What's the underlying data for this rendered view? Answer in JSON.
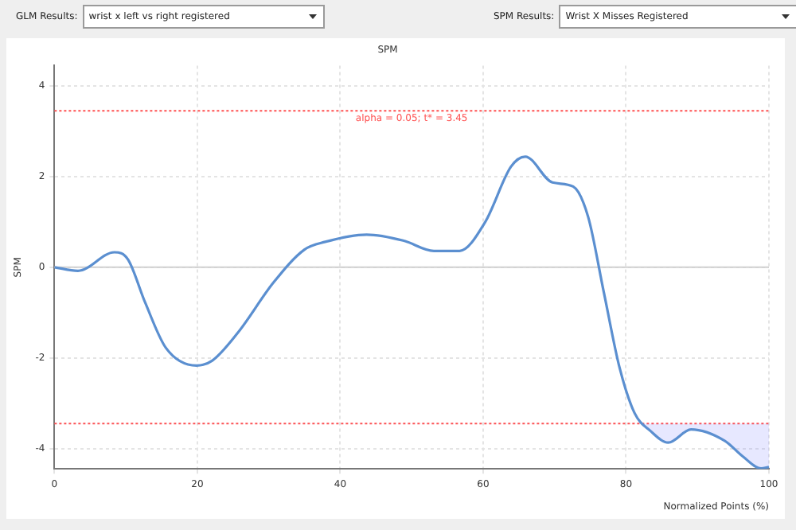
{
  "chart_data": {
    "type": "line",
    "title": "SPM",
    "xlabel": "Normalized Points (%)",
    "ylabel": "SPM",
    "annotations": [
      "GLM Results:",
      "wrist x left vs right registered",
      "SPM Results:",
      "Wrist X Misses Registered"
    ],
    "x": [
      0,
      3.3,
      8.4,
      10.3,
      12.7,
      15.6,
      19.9,
      22.1,
      25.7,
      30.7,
      35,
      37.9,
      43.7,
      48.8,
      53.1,
      56.7,
      60.3,
      63.9,
      65.9,
      69.7,
      72.6,
      74.7,
      76.9,
      79.1,
      81.2,
      83.4,
      85.9,
      89.1,
      93.8,
      96.3,
      98.9,
      100
    ],
    "series": [
      {
        "color": "#5b8fd0",
        "values": [
          0,
          -0.08,
          0.33,
          0.17,
          -0.78,
          -1.78,
          -2.17,
          -2.06,
          -1.44,
          -0.33,
          0.39,
          0.56,
          0.72,
          0.59,
          0.36,
          0.36,
          1.0,
          2.22,
          2.44,
          1.87,
          1.78,
          1.11,
          -0.56,
          -2.22,
          -3.22,
          -3.61,
          -3.87,
          -3.58,
          -3.83,
          -4.17,
          -4.44,
          -4.41
        ]
      }
    ],
    "xlim": [
      0,
      100
    ],
    "xticks": [
      0,
      20,
      40,
      60,
      80,
      100
    ],
    "ylim": [
      -4.45,
      4.45
    ],
    "yticks": [
      -4,
      -2,
      0,
      2,
      4
    ],
    "grid": true,
    "marker": "none",
    "line_style": "solid",
    "ref_lines": [
      {
        "axis": "y",
        "value": 3.45,
        "label": "alpha = 0.05; t* = 3.45",
        "color": "#ff5050",
        "line_style": "dotted"
      },
      {
        "axis": "y",
        "value": -3.45,
        "color": "#ff5050",
        "line_style": "dotted"
      },
      {
        "axis": "y",
        "value": 0,
        "color": "#d0d0d0",
        "line_style": "solid"
      }
    ]
  }
}
